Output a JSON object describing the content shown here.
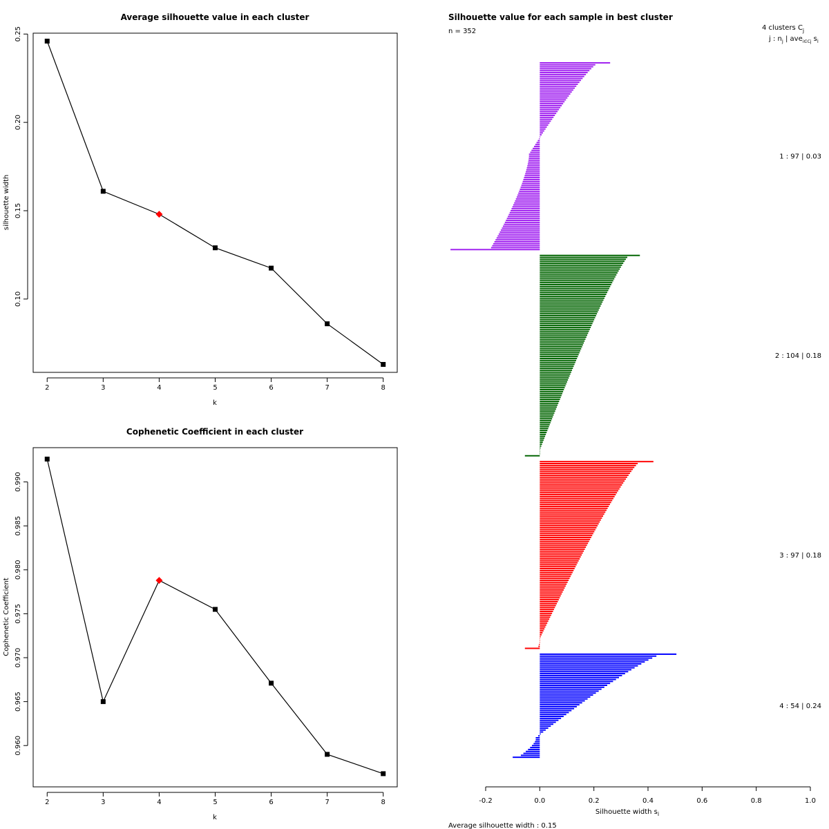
{
  "chart_data": [
    {
      "type": "line",
      "title": "Average silhouette value in each cluster",
      "xlabel": "k",
      "ylabel": "silhouette width",
      "x": [
        2,
        3,
        4,
        5,
        6,
        7,
        8
      ],
      "values": [
        0.246,
        0.161,
        0.148,
        0.129,
        0.1175,
        0.086,
        0.063
      ],
      "highlight_index": 2,
      "xlim": [
        1.75,
        8.25
      ],
      "ylim": [
        0.0585,
        0.2505
      ],
      "xticks": [
        2,
        3,
        4,
        5,
        6,
        7,
        8
      ],
      "xtick_labels": [
        "2",
        "3",
        "4",
        "5",
        "6",
        "7",
        "8"
      ],
      "yticks": [
        0.1,
        0.15,
        0.2,
        0.25
      ],
      "ytick_labels": [
        "0.10",
        "0.15",
        "0.20",
        "0.25"
      ],
      "colors": {
        "line": "#000000",
        "point": "#000000",
        "highlight": "#ff0000"
      }
    },
    {
      "type": "line",
      "title": "Cophenetic Coefficient in each cluster",
      "xlabel": "k",
      "ylabel": "Cophenetic Coefficient",
      "x": [
        2,
        3,
        4,
        5,
        6,
        7,
        8
      ],
      "values": [
        0.9926,
        0.965,
        0.9788,
        0.9755,
        0.9671,
        0.959,
        0.9568
      ],
      "highlight_index": 2,
      "xlim": [
        1.75,
        8.25
      ],
      "ylim": [
        0.9553,
        0.9939
      ],
      "xticks": [
        2,
        3,
        4,
        5,
        6,
        7,
        8
      ],
      "xtick_labels": [
        "2",
        "3",
        "4",
        "5",
        "6",
        "7",
        "8"
      ],
      "yticks": [
        0.96,
        0.965,
        0.97,
        0.975,
        0.98,
        0.985,
        0.99
      ],
      "ytick_labels": [
        "0.960",
        "0.965",
        "0.970",
        "0.975",
        "0.980",
        "0.985",
        "0.990"
      ],
      "colors": {
        "line": "#000000",
        "point": "#000000",
        "highlight": "#ff0000"
      }
    },
    {
      "type": "bar",
      "orientation": "horizontal",
      "title": "Silhouette value for each sample in best cluster",
      "n_label": "n = 352",
      "xlabel": "Silhouette width s",
      "xlabel_sub": "i",
      "xlim": [
        -0.2,
        1.0
      ],
      "xticks": [
        -0.2,
        0.0,
        0.2,
        0.4,
        0.6,
        0.8,
        1.0
      ],
      "xtick_labels": [
        "-0.2",
        "0.0",
        "0.2",
        "0.4",
        "0.6",
        "0.8",
        "1.0"
      ],
      "legend_header_line1": "4  clusters  C",
      "legend_header_sub1": "j",
      "legend_header_line2": "j :  n",
      "legend_header_sub2a": "j",
      "legend_header_mid": " | ave",
      "legend_header_sub2b": "i∈Cj",
      "legend_header_end": " s",
      "legend_header_sub2c": "i",
      "average_label": "Average silhouette width :  0.15",
      "clusters": [
        {
          "label": "1 :  97  |  0.03",
          "n": 97,
          "max": 0.26,
          "top": 0.215,
          "zero_at": 0.51,
          "min": -0.04,
          "bottom": -0.18,
          "tail": -0.33,
          "color": "#a020f0"
        },
        {
          "label": "2 :  104  |  0.18",
          "n": 104,
          "max": 0.37,
          "top": 0.33,
          "zero_at": 0.99,
          "min": 0.0,
          "bottom": 0.0,
          "tail": -0.055,
          "color": "#006400"
        },
        {
          "label": "3 :  97  |  0.18",
          "n": 97,
          "max": 0.42,
          "top": 0.37,
          "zero_at": 0.97,
          "min": 0.0,
          "bottom": -0.005,
          "tail": -0.055,
          "color": "#ff0000"
        },
        {
          "label": "4 :  54  |  0.24",
          "n": 54,
          "max": 0.505,
          "top": 0.45,
          "zero_at": 0.84,
          "min": -0.015,
          "bottom": -0.07,
          "tail": -0.1,
          "color": "#0000ff"
        }
      ]
    }
  ]
}
